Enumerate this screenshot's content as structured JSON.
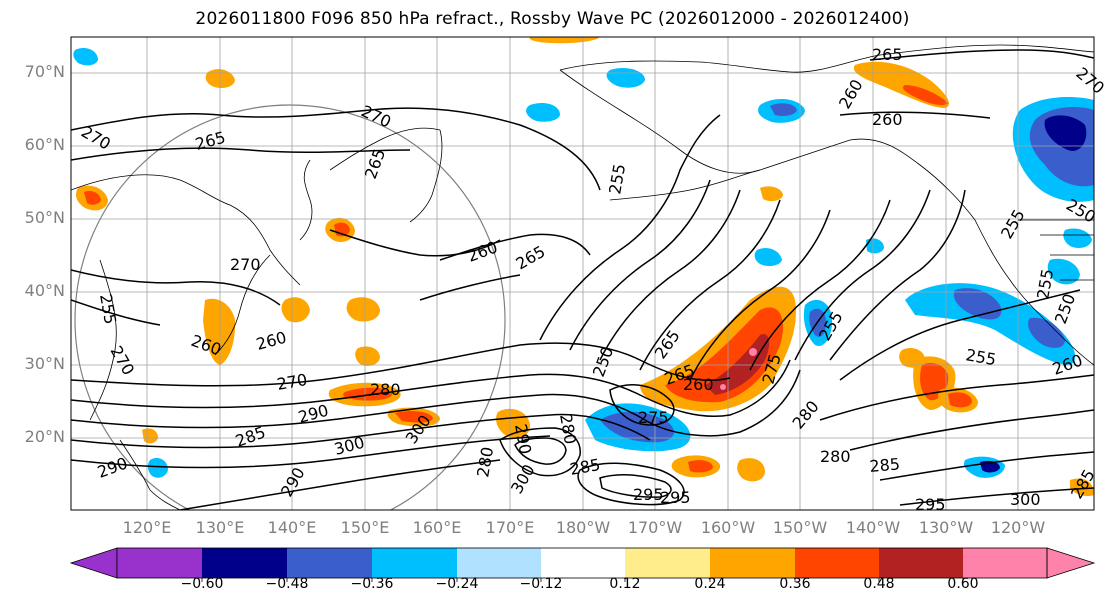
{
  "title": "2026011800 F096 850 hPa refract., Rossby Wave PC (2026012000 - 2026012400)",
  "axes": {
    "lat_labels": [
      "70°N",
      "60°N",
      "50°N",
      "40°N",
      "30°N",
      "20°N"
    ],
    "lon_labels": [
      "120°E",
      "130°E",
      "140°E",
      "150°E",
      "160°E",
      "170°E",
      "180°W",
      "170°W",
      "160°W",
      "150°W",
      "140°W",
      "130°W",
      "120°W"
    ]
  },
  "colorbar": {
    "ticks": [
      "−0.60",
      "−0.48",
      "−0.36",
      "−0.24",
      "−0.12",
      "0.12",
      "0.24",
      "0.36",
      "0.48",
      "0.60"
    ],
    "colors": [
      "#9932CC",
      "#00008B",
      "#3A5FCD",
      "#00BFFF",
      "#B0E2FF",
      "#FFFFFF",
      "#FFEC8B",
      "#FFA500",
      "#FF4500",
      "#B22222",
      "#FF82AB"
    ]
  },
  "contour_labels": [
    "265",
    "260",
    "260",
    "270",
    "270",
    "265",
    "265",
    "255",
    "260",
    "265",
    "270",
    "255",
    "255",
    "265",
    "260",
    "270",
    "280",
    "290",
    "300",
    "285",
    "250",
    "265",
    "260",
    "275",
    "275",
    "280",
    "280",
    "285",
    "295",
    "300",
    "255",
    "260",
    "255",
    "250",
    "290",
    "295",
    "280",
    "300",
    "285",
    "290",
    "280",
    "260",
    "270",
    "255",
    "250",
    "295",
    "290",
    "300",
    "285",
    "270"
  ]
}
